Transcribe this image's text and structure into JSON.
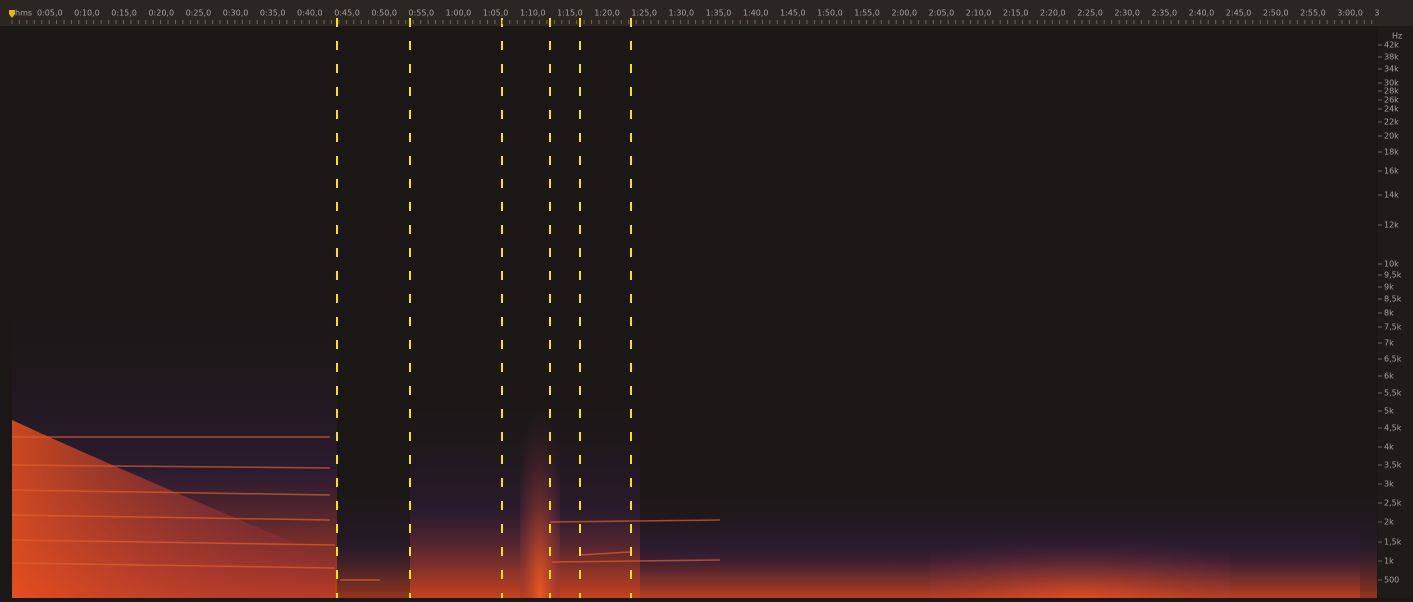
{
  "ruler": {
    "unit": "hms",
    "labels": [
      "0:05,0",
      "0:10,0",
      "0:15,0",
      "0:20,0",
      "0:25,0",
      "0:30,0",
      "0:35,0",
      "0:40,0",
      "0:45,0",
      "0:50,0",
      "0:55,0",
      "1:00,0",
      "1:05,0",
      "1:10,0",
      "1:15,0",
      "1:20,0",
      "1:25,0",
      "1:30,0",
      "1:35,0",
      "1:40,0",
      "1:45,0",
      "1:50,0",
      "1:55,0",
      "2:00,0",
      "2:05,0",
      "2:10,0",
      "2:15,0",
      "2:20,0",
      "2:25,0",
      "2:30,0",
      "2:35,0",
      "2:40,0",
      "2:45,0",
      "2:50,0",
      "2:55,0",
      "3:00,0",
      "3"
    ]
  },
  "frequency_axis": {
    "unit": "Hz",
    "labels": [
      "42k",
      "38k",
      "34k",
      "30k",
      "28k",
      "26k",
      "24k",
      "22k",
      "20k",
      "18k",
      "16k",
      "14k",
      "12k",
      "10k",
      "9,5k",
      "9k",
      "8,5k",
      "8k",
      "7,5k",
      "7k",
      "6,5k",
      "6k",
      "5,5k",
      "5k",
      "4,5k",
      "4k",
      "3,5k",
      "3k",
      "2,5k",
      "2k",
      "1,5k",
      "1k",
      "500"
    ]
  }
}
